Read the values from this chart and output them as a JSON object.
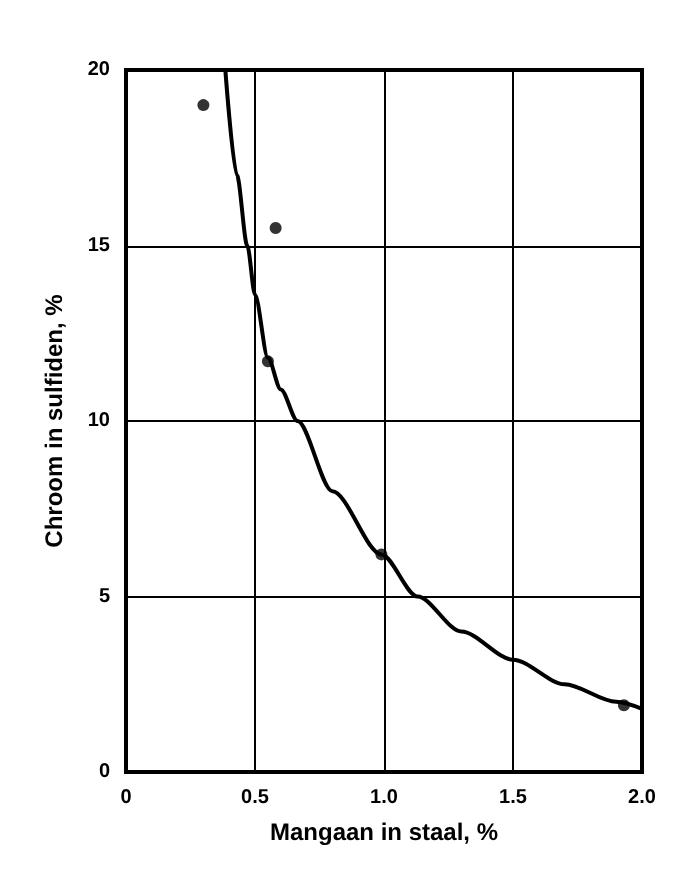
{
  "chart_data": {
    "type": "scatter",
    "xlabel": "Mangaan in staal, %",
    "ylabel": "Chroom in sulfiden, %",
    "xlim": [
      0,
      2
    ],
    "xticks": [
      0,
      0.5,
      {
        "value": 1,
        "label": "1.0"
      },
      1.5,
      {
        "value": 2,
        "label": "2.0"
      }
    ],
    "ylim": [
      0,
      20
    ],
    "yticks": [
      0,
      5,
      10,
      15,
      20
    ],
    "grid": true,
    "series": [
      {
        "color": "#000000",
        "marker": "circle",
        "x": [
          0.3,
          0.58,
          0.55,
          0.99,
          1.93
        ],
        "values": [
          19,
          15.5,
          11.7,
          6.2,
          1.9
        ]
      },
      {
        "type": "line",
        "color": "#000000",
        "marker": "none",
        "line_style": "solid",
        "x": [
          0.385,
          0.43,
          0.47,
          0.5,
          0.55,
          0.6,
          0.665,
          0.8,
          0.99,
          1.13,
          1.3,
          1.5,
          1.7,
          1.9,
          2.0
        ],
        "values": [
          20,
          17,
          15,
          13.6,
          11.8,
          10.9,
          10,
          8,
          6.2,
          5,
          4,
          3.2,
          2.5,
          2.0,
          1.8
        ]
      }
    ]
  }
}
